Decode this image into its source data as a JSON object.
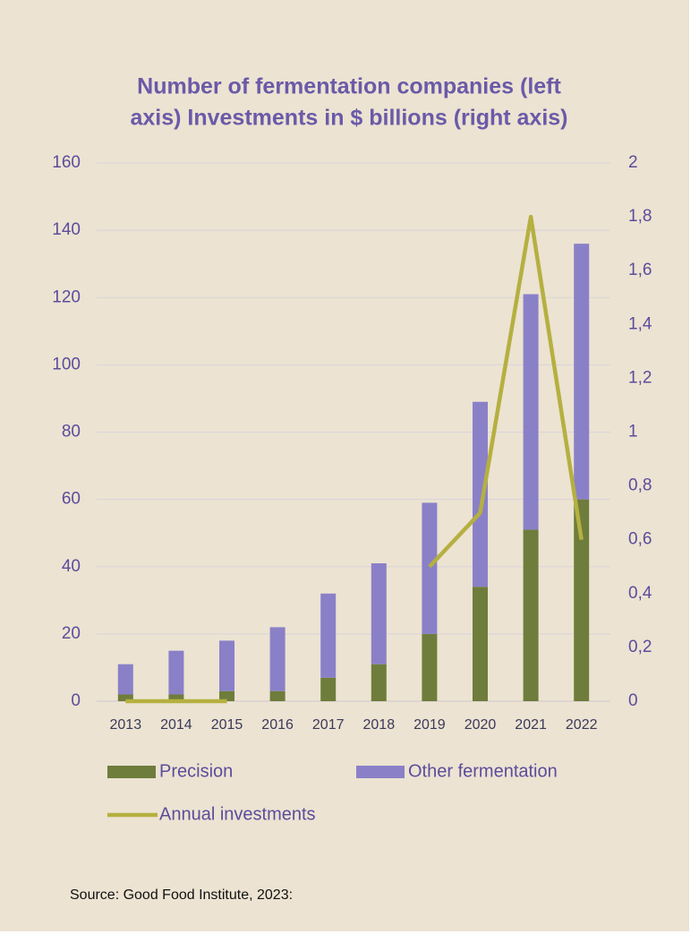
{
  "chart_data": {
    "type": "bar",
    "title": "Number of fermentation companies (left axis) Investments in $ billions (right axis)",
    "title_lines": [
      "Number of fermentation companies (left",
      "axis) Investments in $ billions (right axis)"
    ],
    "stacked": true,
    "categories": [
      "2013",
      "2014",
      "2015",
      "2016",
      "2017",
      "2018",
      "2019",
      "2020",
      "2021",
      "2022"
    ],
    "series": [
      {
        "name": "Precision",
        "color": "#6e7d3b",
        "type": "bar",
        "values": [
          2,
          2,
          3,
          3,
          7,
          11,
          20,
          34,
          51,
          60
        ]
      },
      {
        "name": "Other fermentation",
        "color": "#8a80c8",
        "type": "bar",
        "values": [
          9,
          13,
          15,
          19,
          25,
          30,
          39,
          55,
          70,
          76
        ]
      },
      {
        "name": "Annual investments",
        "color": "#b5b040",
        "type": "line",
        "axis": "y2",
        "values": [
          0,
          0,
          0,
          null,
          null,
          null,
          0.5,
          0.7,
          1.8,
          0.6
        ]
      }
    ],
    "ylim": [
      0,
      160
    ],
    "yticks": [
      0,
      20,
      40,
      60,
      80,
      100,
      120,
      140,
      160
    ],
    "y2lim": [
      0,
      2
    ],
    "y2ticks": [
      0,
      {
        "value": 0.2,
        "label": "0,2"
      },
      {
        "value": 0.4,
        "label": "0,4"
      },
      {
        "value": 0.6,
        "label": "0,6"
      },
      {
        "value": 0.8,
        "label": "0,8"
      },
      1,
      {
        "value": 1.2,
        "label": "1,2"
      },
      {
        "value": 1.4,
        "label": "1,4"
      },
      {
        "value": 1.6,
        "label": "1,6"
      },
      {
        "value": 1.8,
        "label": "1,8"
      },
      2
    ],
    "grid": true,
    "legend": "bottom",
    "source": "Source: Good Food Institute, 2023:"
  }
}
